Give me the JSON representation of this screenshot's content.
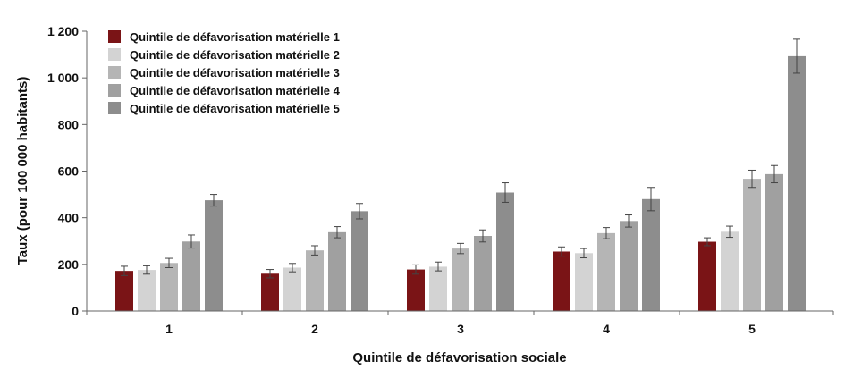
{
  "chart_data": {
    "type": "bar",
    "xlabel": "Quintile de défavorisation sociale",
    "ylabel": "Taux (pour 100 000 habitants)",
    "ylim": [
      0,
      1200
    ],
    "y_ticks": [
      {
        "value": 0,
        "label": "0"
      },
      {
        "value": 200,
        "label": "200"
      },
      {
        "value": 400,
        "label": "400"
      },
      {
        "value": 600,
        "label": "600"
      },
      {
        "value": 800,
        "label": "800"
      },
      {
        "value": 1000,
        "label": "1 000"
      },
      {
        "value": 1200,
        "label": "1 200"
      }
    ],
    "categories": [
      "1",
      "2",
      "3",
      "4",
      "5"
    ],
    "legend_position": "top-left",
    "grid": false,
    "series": [
      {
        "name": "Quintile de défavorisation matérielle 1",
        "color": "#7a1416",
        "values": [
          172,
          160,
          178,
          255,
          297
        ],
        "errors": [
          [
            152,
            192
          ],
          [
            142,
            178
          ],
          [
            158,
            198
          ],
          [
            235,
            275
          ],
          [
            280,
            314
          ]
        ]
      },
      {
        "name": "Quintile de défavorisation matérielle 2",
        "color": "#d3d3d3",
        "values": [
          176,
          186,
          190,
          248,
          340
        ],
        "errors": [
          [
            158,
            194
          ],
          [
            168,
            204
          ],
          [
            172,
            210
          ],
          [
            228,
            268
          ],
          [
            316,
            364
          ]
        ]
      },
      {
        "name": "Quintile de défavorisation matérielle 3",
        "color": "#b5b5b5",
        "values": [
          206,
          260,
          268,
          334,
          567
        ],
        "errors": [
          [
            186,
            226
          ],
          [
            240,
            280
          ],
          [
            246,
            290
          ],
          [
            310,
            358
          ],
          [
            530,
            604
          ]
        ]
      },
      {
        "name": "Quintile de défavorisation matérielle 4",
        "color": "#a0a0a0",
        "values": [
          298,
          338,
          322,
          386,
          587
        ],
        "errors": [
          [
            270,
            326
          ],
          [
            314,
            362
          ],
          [
            296,
            348
          ],
          [
            360,
            412
          ],
          [
            550,
            624
          ]
        ]
      },
      {
        "name": "Quintile de défavorisation matérielle 5",
        "color": "#8d8d8d",
        "values": [
          475,
          428,
          508,
          480,
          1093
        ],
        "errors": [
          [
            450,
            500
          ],
          [
            395,
            461
          ],
          [
            466,
            550
          ],
          [
            430,
            530
          ],
          [
            1020,
            1166
          ]
        ]
      }
    ]
  }
}
